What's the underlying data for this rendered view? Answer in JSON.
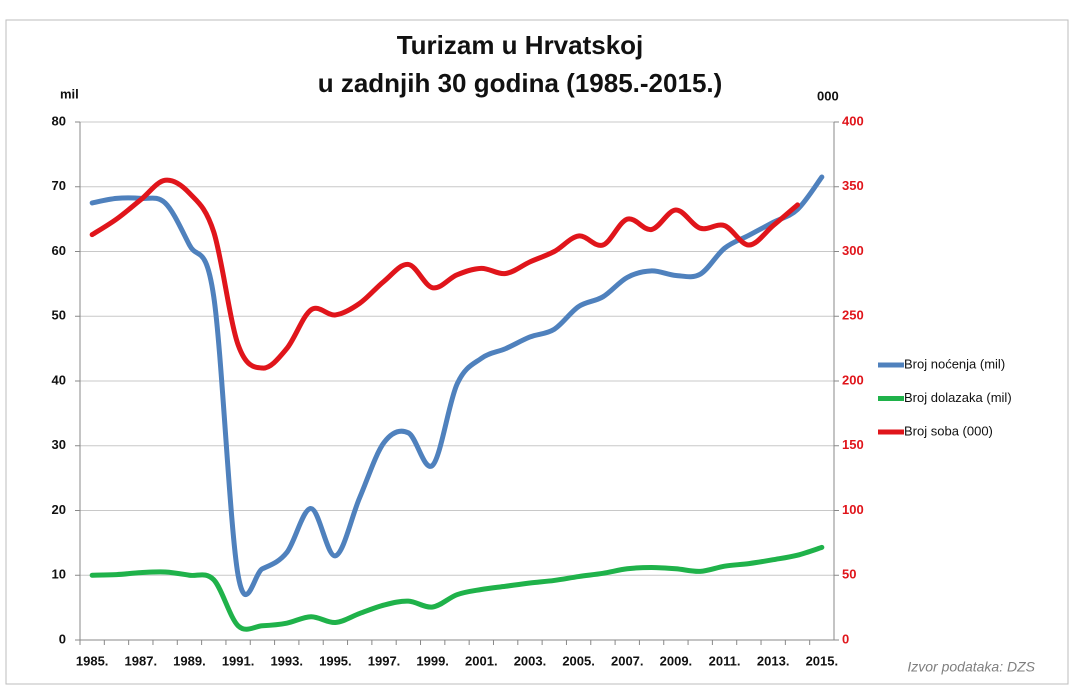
{
  "chart_data": {
    "type": "line",
    "title": [
      "Turizam u Hrvatskoj",
      "u zadnjih 30 godina (1985.-2015.)"
    ],
    "y_label": "mil",
    "y2_label": "000",
    "source": "Izvor podataka: DZS",
    "categories": [
      "1985.",
      null,
      "1987.",
      null,
      "1989.",
      null,
      "1991.",
      null,
      "1993.",
      null,
      "1995.",
      null,
      "1997.",
      null,
      "1999.",
      null,
      "2001.",
      null,
      "2003.",
      null,
      "2005.",
      null,
      "2007.",
      null,
      "2009.",
      null,
      "2011.",
      null,
      "2013.",
      null,
      "2015."
    ],
    "series": [
      {
        "name": "Broj noćenja (mil)",
        "color": "#4f81bd",
        "values": [
          67.5,
          68.2,
          68.2,
          67.5,
          61,
          53,
          10,
          11,
          13.5,
          20.3,
          13,
          22,
          30.5,
          32,
          27,
          39.5,
          43.5,
          45,
          46.8,
          48,
          51.5,
          53,
          56,
          57,
          56.3,
          56.5,
          60.5,
          62.5,
          64.5,
          66.5,
          71.5
        ]
      },
      {
        "name": "Broj dolazaka (mil)",
        "color": "#1fb24a",
        "values": [
          10,
          10.1,
          10.4,
          10.5,
          10,
          9.3,
          2.2,
          2.2,
          2.6,
          3.6,
          2.7,
          4.1,
          5.4,
          6,
          5.1,
          7,
          7.8,
          8.3,
          8.8,
          9.2,
          9.8,
          10.3,
          11,
          11.2,
          11,
          10.6,
          11.4,
          11.8,
          12.4,
          13.1,
          14.3
        ]
      },
      {
        "name": "Broj soba (000)",
        "color": "#e0151b",
        "axis": "y2",
        "values": [
          313,
          325,
          340,
          355,
          345,
          315,
          228,
          210,
          225,
          255,
          251,
          260,
          277,
          290,
          272,
          282,
          287,
          283,
          292,
          300,
          312,
          305,
          325,
          317,
          332,
          318,
          320,
          305,
          320,
          336,
          null
        ]
      }
    ],
    "ylim": [
      0,
      80
    ],
    "yticks": [
      0,
      10,
      20,
      30,
      40,
      50,
      60,
      70,
      80
    ],
    "y2lim": [
      0,
      400
    ],
    "y2ticks": [
      0,
      50,
      100,
      150,
      200,
      250,
      300,
      350,
      400
    ],
    "grid": true,
    "legend": "right"
  }
}
